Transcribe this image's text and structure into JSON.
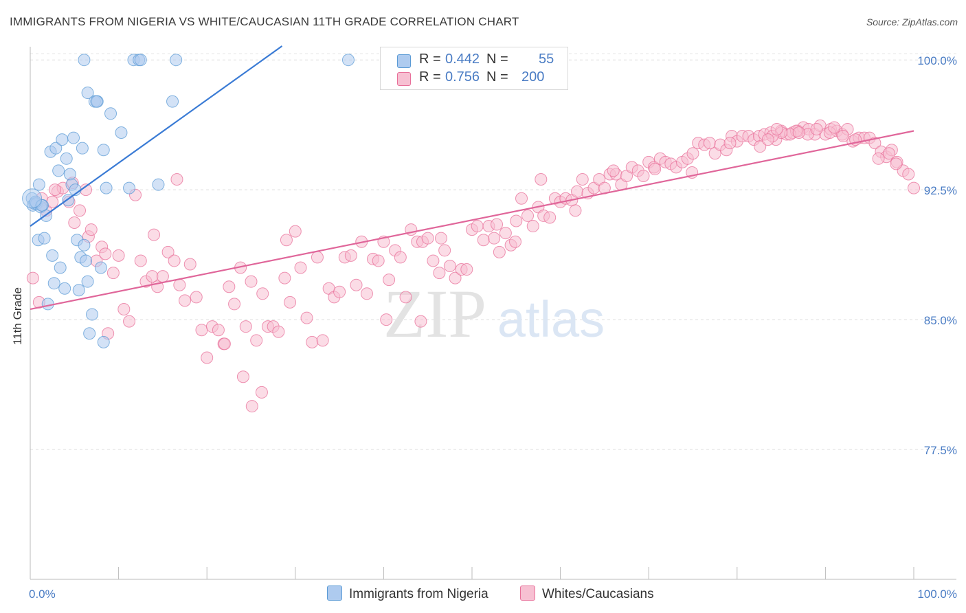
{
  "title": "IMMIGRANTS FROM NIGERIA VS WHITE/CAUCASIAN 11TH GRADE CORRELATION CHART",
  "source": "Source: ZipAtlas.com",
  "watermark": {
    "zip": "ZIP",
    "atlas": "atlas"
  },
  "colors": {
    "blue": "#5b9bd5",
    "blue_fill": "#aecbef",
    "pink": "#e8709a",
    "pink_fill": "#f7c0d2",
    "axis_text": "#4a7cc4"
  },
  "legend_top": {
    "rows": [
      {
        "r_label": "R =",
        "r_value": "0.442",
        "n_label": "N =",
        "n_value": "55"
      },
      {
        "r_label": "R =",
        "r_value": "0.756",
        "n_label": "N =",
        "n_value": "200"
      }
    ]
  },
  "legend_bottom": [
    "Immigrants from Nigeria",
    "Whites/Caucasians"
  ],
  "chart_data": {
    "type": "scatter",
    "title": "IMMIGRANTS FROM NIGERIA VS WHITE/CAUCASIAN 11TH GRADE CORRELATION CHART",
    "xlabel": "",
    "ylabel": "11th Grade",
    "xlim": [
      0,
      100
    ],
    "ylim": [
      70,
      101
    ],
    "x_tick_labels": [
      "0.0%",
      "100.0%"
    ],
    "y_ticks": [
      {
        "value": 100,
        "label": "100.0%"
      },
      {
        "value": 92.5,
        "label": "92.5%"
      },
      {
        "value": 85,
        "label": "85.0%"
      },
      {
        "value": 77.5,
        "label": "77.5%"
      }
    ],
    "series": [
      {
        "name": "Immigrants from Nigeria",
        "color": "#5b9bd5",
        "R": 0.442,
        "N": 55,
        "trend": {
          "x": [
            0,
            28.5
          ],
          "y": [
            90.4,
            100.8
          ]
        },
        "points": [
          [
            0.2,
            92.0
          ],
          [
            0.3,
            91.6
          ],
          [
            0.5,
            91.7
          ],
          [
            0.7,
            91.7
          ],
          [
            0.9,
            89.6
          ],
          [
            1.0,
            92.8
          ],
          [
            1.2,
            91.5
          ],
          [
            1.4,
            91.6
          ],
          [
            1.6,
            89.7
          ],
          [
            1.8,
            91.0
          ],
          [
            2.0,
            85.9
          ],
          [
            2.3,
            94.7
          ],
          [
            2.5,
            88.7
          ],
          [
            2.7,
            87.1
          ],
          [
            2.9,
            94.9
          ],
          [
            3.2,
            93.6
          ],
          [
            3.4,
            88.0
          ],
          [
            3.6,
            95.4
          ],
          [
            3.9,
            86.8
          ],
          [
            4.1,
            94.3
          ],
          [
            4.3,
            91.9
          ],
          [
            4.5,
            93.4
          ],
          [
            4.7,
            92.8
          ],
          [
            4.9,
            95.5
          ],
          [
            5.1,
            92.5
          ],
          [
            5.3,
            89.6
          ],
          [
            5.5,
            86.7
          ],
          [
            5.7,
            88.6
          ],
          [
            5.9,
            94.9
          ],
          [
            6.1,
            89.3
          ],
          [
            6.3,
            88.4
          ],
          [
            6.5,
            87.2
          ],
          [
            6.7,
            84.2
          ],
          [
            7.0,
            85.3
          ],
          [
            7.3,
            97.6
          ],
          [
            7.6,
            97.6
          ],
          [
            8.0,
            88.0
          ],
          [
            8.3,
            83.7
          ],
          [
            8.6,
            92.6
          ],
          [
            10.3,
            95.8
          ],
          [
            11.2,
            92.6
          ],
          [
            6.1,
            100.0
          ],
          [
            11.7,
            100.0
          ],
          [
            12.3,
            100.0
          ],
          [
            16.5,
            100.0
          ],
          [
            36.0,
            100.0
          ],
          [
            6.5,
            98.1
          ],
          [
            7.5,
            97.6
          ],
          [
            9.1,
            96.9
          ],
          [
            8.3,
            94.8
          ],
          [
            12.5,
            100.0
          ],
          [
            0.6,
            91.8
          ],
          [
            1.3,
            91.6
          ],
          [
            14.5,
            92.8
          ],
          [
            16.1,
            97.6
          ]
        ]
      },
      {
        "name": "Whites/Caucasians",
        "color": "#e8709a",
        "R": 0.756,
        "N": 200,
        "trend": {
          "x": [
            0,
            100
          ],
          "y": [
            85.6,
            95.9
          ]
        },
        "points": [
          [
            0.3,
            87.4
          ],
          [
            1.0,
            86.0
          ],
          [
            1.8,
            91.3
          ],
          [
            2.5,
            91.8
          ],
          [
            3.1,
            92.4
          ],
          [
            3.7,
            92.6
          ],
          [
            4.4,
            91.8
          ],
          [
            5.0,
            90.6
          ],
          [
            5.6,
            91.3
          ],
          [
            6.3,
            92.5
          ],
          [
            6.6,
            89.8
          ],
          [
            6.9,
            90.2
          ],
          [
            7.5,
            88.4
          ],
          [
            8.1,
            89.2
          ],
          [
            8.5,
            88.8
          ],
          [
            8.8,
            84.2
          ],
          [
            9.4,
            87.7
          ],
          [
            10.0,
            88.7
          ],
          [
            10.6,
            85.6
          ],
          [
            11.2,
            84.9
          ],
          [
            11.9,
            92.2
          ],
          [
            12.5,
            88.4
          ],
          [
            13.1,
            87.2
          ],
          [
            13.8,
            87.5
          ],
          [
            14.4,
            86.9
          ],
          [
            15.0,
            87.5
          ],
          [
            15.6,
            88.9
          ],
          [
            16.3,
            88.4
          ],
          [
            16.9,
            87.0
          ],
          [
            17.5,
            86.1
          ],
          [
            18.1,
            88.2
          ],
          [
            18.8,
            86.3
          ],
          [
            19.4,
            84.4
          ],
          [
            20.0,
            82.8
          ],
          [
            20.6,
            84.6
          ],
          [
            21.3,
            84.4
          ],
          [
            21.9,
            83.6
          ],
          [
            22.5,
            86.9
          ],
          [
            23.1,
            85.9
          ],
          [
            23.8,
            88.0
          ],
          [
            24.4,
            84.6
          ],
          [
            25.0,
            87.2
          ],
          [
            25.6,
            83.8
          ],
          [
            26.3,
            86.5
          ],
          [
            26.9,
            84.6
          ],
          [
            27.5,
            84.6
          ],
          [
            28.1,
            84.3
          ],
          [
            28.8,
            87.4
          ],
          [
            29.4,
            86.0
          ],
          [
            30.0,
            90.1
          ],
          [
            30.6,
            88.0
          ],
          [
            31.3,
            85.1
          ],
          [
            31.9,
            83.7
          ],
          [
            32.5,
            88.6
          ],
          [
            33.1,
            83.8
          ],
          [
            33.8,
            86.8
          ],
          [
            34.4,
            86.3
          ],
          [
            35.0,
            86.6
          ],
          [
            35.6,
            88.6
          ],
          [
            36.3,
            88.7
          ],
          [
            36.9,
            87.0
          ],
          [
            37.5,
            89.5
          ],
          [
            38.1,
            86.5
          ],
          [
            38.8,
            88.5
          ],
          [
            39.4,
            88.4
          ],
          [
            40.0,
            89.5
          ],
          [
            40.6,
            87.3
          ],
          [
            41.3,
            89.0
          ],
          [
            41.9,
            88.6
          ],
          [
            42.5,
            86.3
          ],
          [
            43.1,
            90.2
          ],
          [
            43.8,
            89.5
          ],
          [
            44.4,
            89.5
          ],
          [
            45.0,
            89.7
          ],
          [
            45.6,
            88.4
          ],
          [
            46.3,
            87.7
          ],
          [
            46.9,
            89.0
          ],
          [
            47.5,
            88.1
          ],
          [
            48.1,
            87.4
          ],
          [
            48.8,
            87.9
          ],
          [
            49.4,
            87.9
          ],
          [
            50.0,
            90.2
          ],
          [
            50.6,
            90.4
          ],
          [
            51.3,
            89.6
          ],
          [
            51.9,
            90.4
          ],
          [
            52.5,
            89.7
          ],
          [
            53.1,
            88.9
          ],
          [
            53.8,
            90.0
          ],
          [
            54.4,
            89.3
          ],
          [
            55.0,
            90.7
          ],
          [
            55.6,
            92.0
          ],
          [
            56.3,
            91.0
          ],
          [
            56.9,
            90.4
          ],
          [
            57.5,
            91.5
          ],
          [
            58.1,
            91.0
          ],
          [
            58.8,
            90.9
          ],
          [
            59.4,
            92.0
          ],
          [
            60.0,
            91.8
          ],
          [
            60.6,
            92.0
          ],
          [
            61.3,
            91.9
          ],
          [
            61.9,
            92.4
          ],
          [
            62.5,
            93.1
          ],
          [
            63.1,
            92.3
          ],
          [
            63.8,
            92.6
          ],
          [
            64.4,
            93.1
          ],
          [
            65.0,
            92.6
          ],
          [
            65.6,
            93.4
          ],
          [
            66.3,
            93.4
          ],
          [
            66.9,
            92.8
          ],
          [
            67.5,
            93.3
          ],
          [
            68.1,
            93.8
          ],
          [
            68.8,
            93.6
          ],
          [
            69.4,
            93.3
          ],
          [
            70.0,
            94.1
          ],
          [
            70.6,
            93.8
          ],
          [
            71.3,
            94.3
          ],
          [
            71.9,
            94.1
          ],
          [
            72.5,
            94.0
          ],
          [
            73.1,
            93.8
          ],
          [
            73.8,
            94.1
          ],
          [
            74.4,
            94.3
          ],
          [
            75.0,
            94.6
          ],
          [
            75.6,
            95.2
          ],
          [
            76.3,
            95.1
          ],
          [
            76.9,
            95.2
          ],
          [
            77.5,
            94.6
          ],
          [
            78.1,
            95.1
          ],
          [
            78.8,
            94.8
          ],
          [
            79.4,
            95.6
          ],
          [
            80.0,
            95.3
          ],
          [
            80.6,
            95.6
          ],
          [
            81.3,
            95.6
          ],
          [
            81.9,
            95.4
          ],
          [
            82.5,
            95.6
          ],
          [
            83.1,
            95.7
          ],
          [
            83.8,
            95.8
          ],
          [
            84.4,
            95.4
          ],
          [
            85.0,
            95.9
          ],
          [
            85.6,
            95.7
          ],
          [
            86.3,
            95.8
          ],
          [
            86.9,
            95.9
          ],
          [
            87.5,
            96.1
          ],
          [
            88.1,
            96.0
          ],
          [
            88.8,
            95.7
          ],
          [
            89.4,
            96.2
          ],
          [
            90.0,
            95.7
          ],
          [
            90.6,
            96.0
          ],
          [
            91.3,
            95.9
          ],
          [
            91.9,
            95.7
          ],
          [
            92.5,
            96.0
          ],
          [
            93.1,
            95.3
          ],
          [
            93.8,
            95.5
          ],
          [
            94.4,
            95.5
          ],
          [
            95.0,
            95.5
          ],
          [
            95.6,
            95.2
          ],
          [
            96.3,
            94.7
          ],
          [
            96.9,
            94.4
          ],
          [
            97.5,
            94.8
          ],
          [
            98.1,
            94.1
          ],
          [
            98.8,
            93.6
          ],
          [
            99.4,
            93.4
          ],
          [
            100.0,
            92.6
          ],
          [
            1.3,
            92.0
          ],
          [
            2.8,
            92.5
          ],
          [
            4.8,
            92.9
          ],
          [
            14.0,
            89.9
          ],
          [
            16.6,
            93.1
          ],
          [
            22.0,
            83.6
          ],
          [
            24.1,
            81.7
          ],
          [
            25.1,
            80.0
          ],
          [
            26.2,
            80.8
          ],
          [
            29.0,
            89.6
          ],
          [
            40.3,
            85.0
          ],
          [
            44.2,
            84.9
          ],
          [
            46.5,
            89.7
          ],
          [
            52.8,
            90.5
          ],
          [
            54.9,
            89.5
          ],
          [
            57.8,
            93.1
          ],
          [
            61.7,
            91.3
          ],
          [
            66.0,
            93.6
          ],
          [
            70.7,
            93.7
          ],
          [
            74.9,
            93.5
          ],
          [
            79.2,
            95.2
          ],
          [
            82.6,
            95.0
          ],
          [
            86.7,
            95.9
          ],
          [
            90.5,
            95.8
          ],
          [
            93.4,
            95.4
          ],
          [
            96.0,
            94.3
          ],
          [
            97.2,
            94.6
          ],
          [
            98.0,
            94.0
          ],
          [
            86.0,
            95.7
          ],
          [
            88.0,
            95.7
          ],
          [
            91.0,
            96.1
          ],
          [
            92.0,
            95.6
          ],
          [
            85.0,
            95.8
          ],
          [
            84.0,
            95.6
          ],
          [
            83.5,
            95.4
          ],
          [
            84.5,
            96.0
          ],
          [
            87.0,
            95.8
          ],
          [
            89.0,
            96.0
          ]
        ]
      }
    ]
  }
}
